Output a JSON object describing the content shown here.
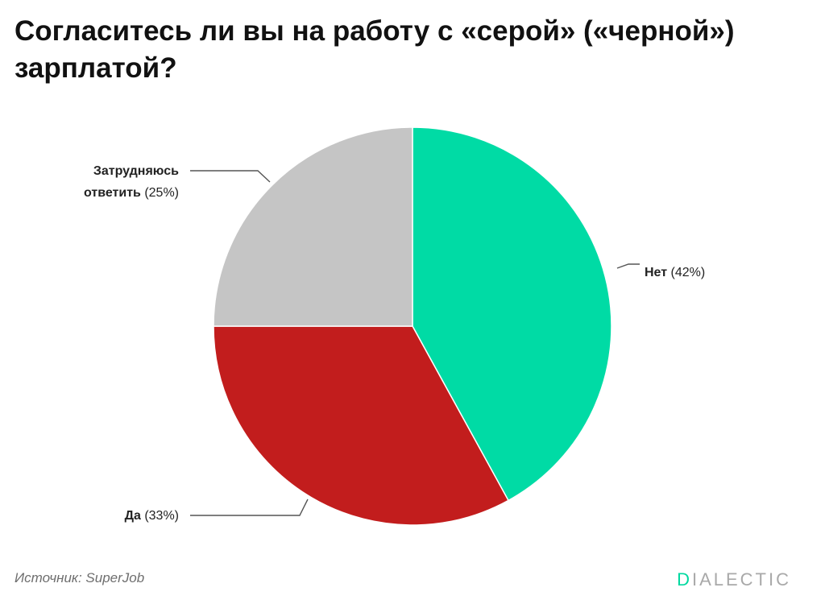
{
  "title": "Согласитесь ли вы на работу с «серой» («черной») зарплатой?",
  "source": "Источник: SuperJob",
  "logo": {
    "text": "DIALECTIC",
    "first_letter": "D",
    "rest": "IALECTIC",
    "accent_color": "#00d9a0",
    "color": "#a9a9a9"
  },
  "chart_data": {
    "type": "pie",
    "title": "Согласитесь ли вы на работу с «серой» («черной») зарплатой?",
    "start": "12 o'clock",
    "direction": "clockwise",
    "slices": [
      {
        "label": "Нет",
        "value": 42,
        "value_text": "(42%)",
        "color": "#00dba5"
      },
      {
        "label": "Да",
        "value": 33,
        "value_text": "(33%)",
        "color": "#c21d1d"
      },
      {
        "label": "Затрудняюсь ответить",
        "label_lines": [
          "Затрудняюсь",
          "ответить"
        ],
        "value": 25,
        "value_text": "(25%)",
        "color": "#c5c5c5"
      }
    ]
  }
}
